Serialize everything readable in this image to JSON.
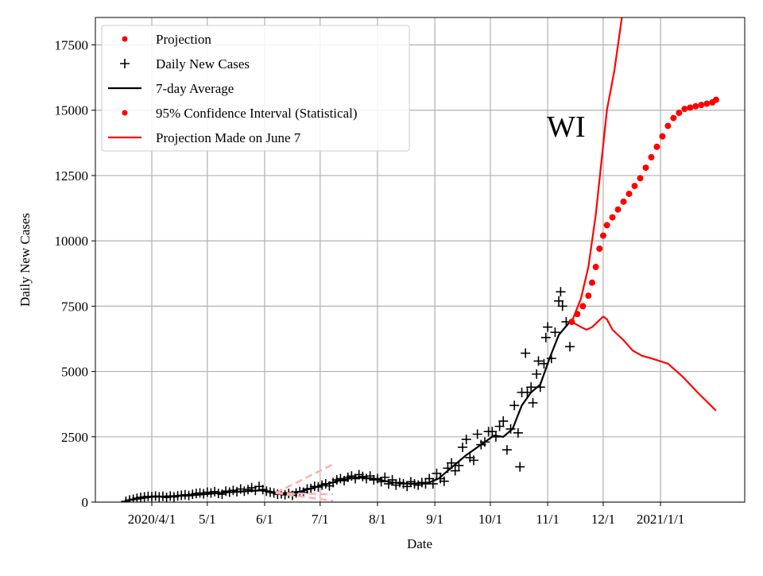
{
  "chart_data": {
    "type": "scatter",
    "title": "",
    "annotation": "WI",
    "xlabel": "Date",
    "ylabel": "Daily New Cases",
    "x_units": "days since 2020/4/1",
    "xlim": [
      -30.5,
      320.5
    ],
    "ylim": [
      0,
      18550
    ],
    "grid": true,
    "legend_placement": "top-left",
    "x_ticks": [
      {
        "value": 0,
        "label": "2020/4/1"
      },
      {
        "value": 30,
        "label": "5/1"
      },
      {
        "value": 61,
        "label": "6/1"
      },
      {
        "value": 91,
        "label": "7/1"
      },
      {
        "value": 122,
        "label": "8/1"
      },
      {
        "value": 153,
        "label": "9/1"
      },
      {
        "value": 183,
        "label": "10/1"
      },
      {
        "value": 214,
        "label": "11/1"
      },
      {
        "value": 244,
        "label": "12/1"
      },
      {
        "value": 275,
        "label": "2021/1/1"
      }
    ],
    "y_ticks": [
      0,
      2500,
      5000,
      7500,
      10000,
      12500,
      15000,
      17500
    ],
    "legend": [
      {
        "label": "Projection",
        "marker": "dot",
        "color": "#ff0000"
      },
      {
        "label": "Daily New Cases",
        "marker": "plus",
        "color": "#000000"
      },
      {
        "label": "7-day Average",
        "marker": "line",
        "color": "#000000"
      },
      {
        "label": "95% Confidence Interval (Statistical)",
        "marker": "dot",
        "color": "#ff0000"
      },
      {
        "label": "Projection Made on June 7",
        "marker": "line",
        "color": "#ff0000"
      }
    ],
    "series": [
      {
        "name": "Daily New Cases",
        "color": "#000000",
        "points": [
          [
            -14,
            30
          ],
          [
            -12,
            80
          ],
          [
            -10,
            110
          ],
          [
            -8,
            150
          ],
          [
            -6,
            180
          ],
          [
            -4,
            200
          ],
          [
            -2,
            220
          ],
          [
            0,
            210
          ],
          [
            2,
            230
          ],
          [
            4,
            200
          ],
          [
            6,
            220
          ],
          [
            8,
            180
          ],
          [
            10,
            230
          ],
          [
            12,
            200
          ],
          [
            14,
            240
          ],
          [
            16,
            260
          ],
          [
            18,
            280
          ],
          [
            20,
            250
          ],
          [
            22,
            300
          ],
          [
            24,
            330
          ],
          [
            26,
            350
          ],
          [
            28,
            320
          ],
          [
            30,
            380
          ],
          [
            32,
            350
          ],
          [
            34,
            400
          ],
          [
            36,
            330
          ],
          [
            38,
            300
          ],
          [
            40,
            420
          ],
          [
            42,
            380
          ],
          [
            44,
            450
          ],
          [
            46,
            400
          ],
          [
            48,
            500
          ],
          [
            50,
            420
          ],
          [
            52,
            480
          ],
          [
            54,
            550
          ],
          [
            56,
            450
          ],
          [
            58,
            600
          ],
          [
            60,
            480
          ],
          [
            62,
            420
          ],
          [
            64,
            380
          ],
          [
            66,
            350
          ],
          [
            68,
            300
          ],
          [
            70,
            320
          ],
          [
            72,
            280
          ],
          [
            74,
            330
          ],
          [
            76,
            260
          ],
          [
            78,
            350
          ],
          [
            80,
            400
          ],
          [
            82,
            380
          ],
          [
            84,
            500
          ],
          [
            86,
            520
          ],
          [
            88,
            600
          ],
          [
            90,
            580
          ],
          [
            92,
            650
          ],
          [
            94,
            700
          ],
          [
            96,
            620
          ],
          [
            98,
            750
          ],
          [
            100,
            850
          ],
          [
            102,
            900
          ],
          [
            104,
            820
          ],
          [
            106,
            950
          ],
          [
            108,
            1000
          ],
          [
            110,
            900
          ],
          [
            112,
            1050
          ],
          [
            114,
            980
          ],
          [
            116,
            900
          ],
          [
            118,
            1000
          ],
          [
            120,
            850
          ],
          [
            122,
            900
          ],
          [
            124,
            780
          ],
          [
            126,
            950
          ],
          [
            128,
            700
          ],
          [
            130,
            850
          ],
          [
            132,
            650
          ],
          [
            134,
            750
          ],
          [
            136,
            700
          ],
          [
            138,
            600
          ],
          [
            140,
            780
          ],
          [
            142,
            700
          ],
          [
            144,
            650
          ],
          [
            146,
            750
          ],
          [
            148,
            700
          ],
          [
            150,
            900
          ],
          [
            152,
            700
          ],
          [
            154,
            1100
          ],
          [
            156,
            900
          ],
          [
            158,
            800
          ],
          [
            160,
            1300
          ],
          [
            162,
            1500
          ],
          [
            164,
            1200
          ],
          [
            166,
            1400
          ],
          [
            168,
            2100
          ],
          [
            170,
            2400
          ],
          [
            172,
            1700
          ],
          [
            174,
            1600
          ],
          [
            176,
            2600
          ],
          [
            178,
            2200
          ],
          [
            180,
            2300
          ],
          [
            182,
            2700
          ],
          [
            184,
            2700
          ],
          [
            186,
            2500
          ],
          [
            188,
            2900
          ],
          [
            190,
            3100
          ],
          [
            192,
            2000
          ],
          [
            194,
            2800
          ],
          [
            196,
            3700
          ],
          [
            198,
            2650
          ],
          [
            199,
            1350
          ],
          [
            200,
            4200
          ],
          [
            202,
            5700
          ],
          [
            203,
            4200
          ],
          [
            205,
            4400
          ],
          [
            206,
            3800
          ],
          [
            208,
            4900
          ],
          [
            209,
            5400
          ],
          [
            210,
            4400
          ],
          [
            212,
            5300
          ],
          [
            213,
            6300
          ],
          [
            214,
            6700
          ],
          [
            216,
            5500
          ],
          [
            218,
            6500
          ],
          [
            220,
            7700
          ],
          [
            221,
            8050
          ],
          [
            222,
            7500
          ],
          [
            224,
            6900
          ],
          [
            226,
            5950
          ]
        ]
      },
      {
        "name": "7-day Average",
        "color": "#000000",
        "points": [
          [
            -10,
            100
          ],
          [
            0,
            200
          ],
          [
            20,
            250
          ],
          [
            40,
            370
          ],
          [
            60,
            450
          ],
          [
            70,
            330
          ],
          [
            80,
            400
          ],
          [
            90,
            600
          ],
          [
            100,
            800
          ],
          [
            110,
            950
          ],
          [
            120,
            900
          ],
          [
            130,
            750
          ],
          [
            140,
            700
          ],
          [
            150,
            750
          ],
          [
            155,
            900
          ],
          [
            160,
            1200
          ],
          [
            170,
            1800
          ],
          [
            180,
            2300
          ],
          [
            185,
            2550
          ],
          [
            190,
            2500
          ],
          [
            195,
            2800
          ],
          [
            200,
            3700
          ],
          [
            205,
            4200
          ],
          [
            210,
            4500
          ],
          [
            215,
            5500
          ],
          [
            220,
            6400
          ],
          [
            226,
            6900
          ]
        ]
      },
      {
        "name": "Projection",
        "color": "#ff0000",
        "points": [
          [
            227,
            6900
          ],
          [
            230,
            7200
          ],
          [
            233,
            7500
          ],
          [
            236,
            7900
          ],
          [
            238,
            8400
          ],
          [
            240,
            9000
          ],
          [
            242,
            9700
          ],
          [
            244,
            10200
          ],
          [
            246,
            10600
          ],
          [
            249,
            10900
          ],
          [
            252,
            11200
          ],
          [
            255,
            11500
          ],
          [
            258,
            11800
          ],
          [
            261,
            12100
          ],
          [
            264,
            12400
          ],
          [
            267,
            12800
          ],
          [
            270,
            13200
          ],
          [
            273,
            13600
          ],
          [
            276,
            14000
          ],
          [
            279,
            14400
          ],
          [
            282,
            14700
          ],
          [
            285,
            14900
          ],
          [
            288,
            15050
          ],
          [
            291,
            15100
          ],
          [
            294,
            15150
          ],
          [
            297,
            15200
          ],
          [
            300,
            15250
          ],
          [
            303,
            15300
          ],
          [
            305,
            15400
          ]
        ]
      },
      {
        "name": "95% CI upper",
        "color": "#ff0000",
        "points": [
          [
            227,
            6900
          ],
          [
            232,
            7800
          ],
          [
            236,
            9000
          ],
          [
            240,
            11000
          ],
          [
            243,
            13000
          ],
          [
            246,
            15000
          ],
          [
            250,
            16500
          ],
          [
            253,
            18000
          ],
          [
            255,
            19000
          ]
        ]
      },
      {
        "name": "95% CI lower",
        "color": "#ff0000",
        "points": [
          [
            227,
            6900
          ],
          [
            232,
            6700
          ],
          [
            235,
            6600
          ],
          [
            238,
            6700
          ],
          [
            241,
            6900
          ],
          [
            244,
            7100
          ],
          [
            246,
            7000
          ],
          [
            249,
            6600
          ],
          [
            255,
            6200
          ],
          [
            260,
            5800
          ],
          [
            265,
            5600
          ],
          [
            270,
            5500
          ],
          [
            279,
            5300
          ],
          [
            287,
            4800
          ],
          [
            295,
            4200
          ],
          [
            305,
            3500
          ]
        ]
      },
      {
        "name": "Projection Made on June 7",
        "color": "#ffb0b0",
        "dashed": true,
        "lines": [
          [
            [
              67,
              350
            ],
            [
              98,
              1450
            ]
          ],
          [
            [
              67,
              350
            ],
            [
              98,
              300
            ]
          ],
          [
            [
              67,
              350
            ],
            [
              98,
              50
            ]
          ]
        ]
      }
    ]
  }
}
